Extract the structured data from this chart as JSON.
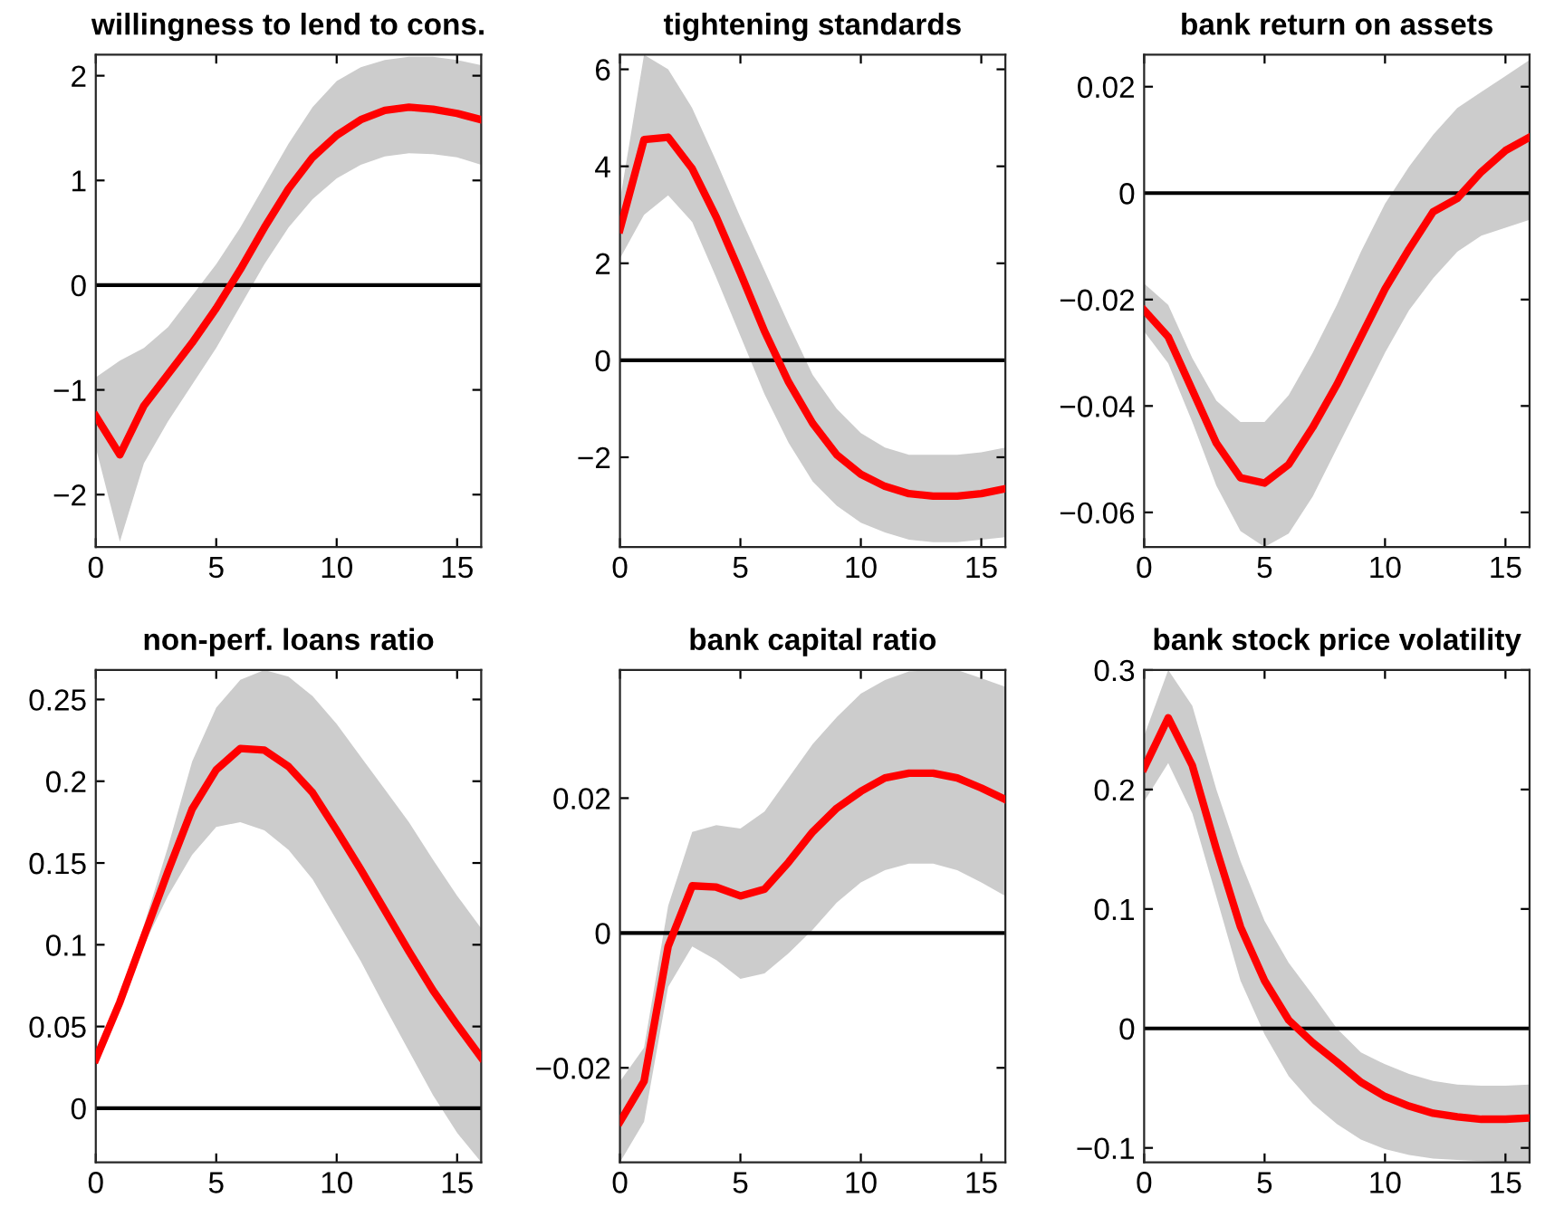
{
  "chart_data": [
    {
      "type": "line",
      "title": "willingness to lend to cons.",
      "x": [
        0,
        1,
        2,
        3,
        4,
        5,
        6,
        7,
        8,
        9,
        10,
        11,
        12,
        13,
        14,
        15,
        16
      ],
      "xlim": [
        0,
        16
      ],
      "xticks": [
        0,
        5,
        10,
        15
      ],
      "ylim": [
        -2.5,
        2.2
      ],
      "yticks": [
        -2,
        -1,
        0,
        1,
        2
      ],
      "grid": false,
      "ref_lines": [
        {
          "axis": "y",
          "value": 0,
          "color": "#000000"
        }
      ],
      "series": [
        {
          "color": "#ff0000",
          "values": [
            -1.25,
            -1.62,
            -1.15,
            -0.85,
            -0.55,
            -0.22,
            0.15,
            0.55,
            0.92,
            1.22,
            1.43,
            1.58,
            1.67,
            1.7,
            1.68,
            1.64,
            1.58
          ],
          "lower": [
            -1.55,
            -2.45,
            -1.7,
            -1.3,
            -0.95,
            -0.6,
            -0.2,
            0.2,
            0.55,
            0.82,
            1.02,
            1.15,
            1.23,
            1.26,
            1.25,
            1.22,
            1.15
          ],
          "upper": [
            -0.88,
            -0.72,
            -0.6,
            -0.4,
            -0.1,
            0.2,
            0.55,
            0.95,
            1.35,
            1.7,
            1.95,
            2.08,
            2.15,
            2.18,
            2.18,
            2.15,
            2.1
          ]
        }
      ]
    },
    {
      "type": "line",
      "title": "tightening standards",
      "x": [
        0,
        1,
        2,
        3,
        4,
        5,
        6,
        7,
        8,
        9,
        10,
        11,
        12,
        13,
        14,
        15,
        16
      ],
      "xlim": [
        0,
        16
      ],
      "xticks": [
        0,
        5,
        10,
        15
      ],
      "ylim": [
        -3.85,
        6.3
      ],
      "yticks": [
        -2,
        0,
        2,
        4,
        6
      ],
      "grid": false,
      "ref_lines": [
        {
          "axis": "y",
          "value": 0,
          "color": "#000000"
        }
      ],
      "series": [
        {
          "color": "#ff0000",
          "values": [
            2.7,
            4.55,
            4.6,
            3.95,
            2.95,
            1.8,
            0.6,
            -0.45,
            -1.3,
            -1.95,
            -2.35,
            -2.6,
            -2.75,
            -2.8,
            -2.8,
            -2.75,
            -2.65
          ],
          "lower": [
            2.1,
            3.0,
            3.4,
            2.85,
            1.7,
            0.5,
            -0.7,
            -1.7,
            -2.5,
            -3.0,
            -3.35,
            -3.55,
            -3.7,
            -3.75,
            -3.75,
            -3.7,
            -3.65
          ],
          "upper": [
            3.3,
            6.3,
            6.0,
            5.2,
            4.1,
            2.95,
            1.85,
            0.75,
            -0.3,
            -1.0,
            -1.5,
            -1.8,
            -1.95,
            -1.95,
            -1.95,
            -1.9,
            -1.8
          ]
        }
      ]
    },
    {
      "type": "line",
      "title": "bank return on assets",
      "x": [
        0,
        1,
        2,
        3,
        4,
        5,
        6,
        7,
        8,
        9,
        10,
        11,
        12,
        13,
        14,
        15,
        16
      ],
      "xlim": [
        0,
        16
      ],
      "xticks": [
        0,
        5,
        10,
        15
      ],
      "ylim": [
        -0.0665,
        0.026
      ],
      "yticks": [
        -0.06,
        -0.04,
        -0.02,
        0,
        0.02
      ],
      "grid": false,
      "ref_lines": [
        {
          "axis": "y",
          "value": 0,
          "color": "#000000"
        }
      ],
      "series": [
        {
          "color": "#ff0000",
          "values": [
            -0.022,
            -0.027,
            -0.037,
            -0.047,
            -0.0535,
            -0.0545,
            -0.051,
            -0.044,
            -0.036,
            -0.027,
            -0.018,
            -0.0105,
            -0.0035,
            -0.001,
            0.004,
            0.008,
            0.0105
          ],
          "lower": [
            -0.026,
            -0.032,
            -0.043,
            -0.055,
            -0.0635,
            -0.0665,
            -0.064,
            -0.057,
            -0.048,
            -0.039,
            -0.03,
            -0.022,
            -0.016,
            -0.011,
            -0.008,
            -0.0065,
            -0.005
          ],
          "upper": [
            -0.017,
            -0.021,
            -0.031,
            -0.039,
            -0.043,
            -0.043,
            -0.038,
            -0.03,
            -0.021,
            -0.011,
            -0.002,
            0.005,
            0.011,
            0.016,
            0.019,
            0.022,
            0.025
          ]
        }
      ]
    },
    {
      "type": "line",
      "title": "non-perf. loans ratio",
      "x": [
        0,
        1,
        2,
        3,
        4,
        5,
        6,
        7,
        8,
        9,
        10,
        11,
        12,
        13,
        14,
        15,
        16
      ],
      "xlim": [
        0,
        16
      ],
      "xticks": [
        0,
        5,
        10,
        15
      ],
      "ylim": [
        -0.033,
        0.268
      ],
      "yticks": [
        0,
        0.05,
        0.1,
        0.15,
        0.2,
        0.25
      ],
      "grid": false,
      "ref_lines": [
        {
          "axis": "y",
          "value": 0,
          "color": "#000000"
        }
      ],
      "series": [
        {
          "color": "#ff0000",
          "values": [
            0.03,
            0.065,
            0.105,
            0.145,
            0.183,
            0.207,
            0.22,
            0.219,
            0.209,
            0.193,
            0.17,
            0.146,
            0.121,
            0.096,
            0.072,
            0.051,
            0.031
          ],
          "lower": [
            0.03,
            0.06,
            0.1,
            0.13,
            0.155,
            0.172,
            0.175,
            0.17,
            0.158,
            0.14,
            0.115,
            0.09,
            0.062,
            0.035,
            0.008,
            -0.015,
            -0.033
          ],
          "upper": [
            0.03,
            0.068,
            0.112,
            0.16,
            0.212,
            0.245,
            0.262,
            0.268,
            0.264,
            0.252,
            0.235,
            0.215,
            0.195,
            0.175,
            0.152,
            0.13,
            0.11
          ]
        }
      ]
    },
    {
      "type": "line",
      "title": "bank capital ratio",
      "x": [
        0,
        1,
        2,
        3,
        4,
        5,
        6,
        7,
        8,
        9,
        10,
        11,
        12,
        13,
        14,
        15,
        16
      ],
      "xlim": [
        0,
        16
      ],
      "xticks": [
        0,
        5,
        10,
        15
      ],
      "ylim": [
        -0.034,
        0.039
      ],
      "yticks": [
        -0.02,
        0,
        0.02
      ],
      "grid": false,
      "ref_lines": [
        {
          "axis": "y",
          "value": 0,
          "color": "#000000"
        }
      ],
      "series": [
        {
          "color": "#ff0000",
          "values": [
            -0.028,
            -0.022,
            -0.002,
            0.007,
            0.0068,
            0.0055,
            0.0065,
            0.0105,
            0.015,
            0.0185,
            0.021,
            0.023,
            0.0237,
            0.0237,
            0.023,
            0.0215,
            0.0198
          ],
          "lower": [
            -0.034,
            -0.028,
            -0.008,
            -0.002,
            -0.004,
            -0.0068,
            -0.006,
            -0.003,
            0.0005,
            0.0045,
            0.0075,
            0.0093,
            0.0103,
            0.0103,
            0.0093,
            0.0075,
            0.0055
          ],
          "upper": [
            -0.022,
            -0.017,
            0.004,
            0.015,
            0.016,
            0.0155,
            0.018,
            0.023,
            0.028,
            0.032,
            0.0355,
            0.0375,
            0.0388,
            0.039,
            0.039,
            0.0378,
            0.0365
          ]
        }
      ]
    },
    {
      "type": "line",
      "title": "bank stock price volatility",
      "x": [
        0,
        1,
        2,
        3,
        4,
        5,
        6,
        7,
        8,
        9,
        10,
        11,
        12,
        13,
        14,
        15,
        16
      ],
      "xlim": [
        0,
        16
      ],
      "xticks": [
        0,
        5,
        10,
        15
      ],
      "ylim": [
        -0.112,
        0.3
      ],
      "yticks": [
        -0.1,
        0,
        0.1,
        0.2,
        0.3
      ],
      "grid": false,
      "ref_lines": [
        {
          "axis": "y",
          "value": 0,
          "color": "#000000"
        }
      ],
      "series": [
        {
          "color": "#ff0000",
          "values": [
            0.218,
            0.26,
            0.22,
            0.15,
            0.085,
            0.04,
            0.007,
            -0.012,
            -0.028,
            -0.045,
            -0.057,
            -0.065,
            -0.071,
            -0.074,
            -0.076,
            -0.076,
            -0.075
          ],
          "lower": [
            0.19,
            0.222,
            0.18,
            0.11,
            0.04,
            -0.005,
            -0.04,
            -0.063,
            -0.08,
            -0.093,
            -0.101,
            -0.106,
            -0.109,
            -0.11,
            -0.111,
            -0.112,
            -0.112
          ],
          "upper": [
            0.245,
            0.3,
            0.27,
            0.2,
            0.14,
            0.09,
            0.055,
            0.028,
            0.0,
            -0.02,
            -0.03,
            -0.038,
            -0.044,
            -0.047,
            -0.048,
            -0.048,
            -0.047
          ]
        }
      ]
    }
  ]
}
